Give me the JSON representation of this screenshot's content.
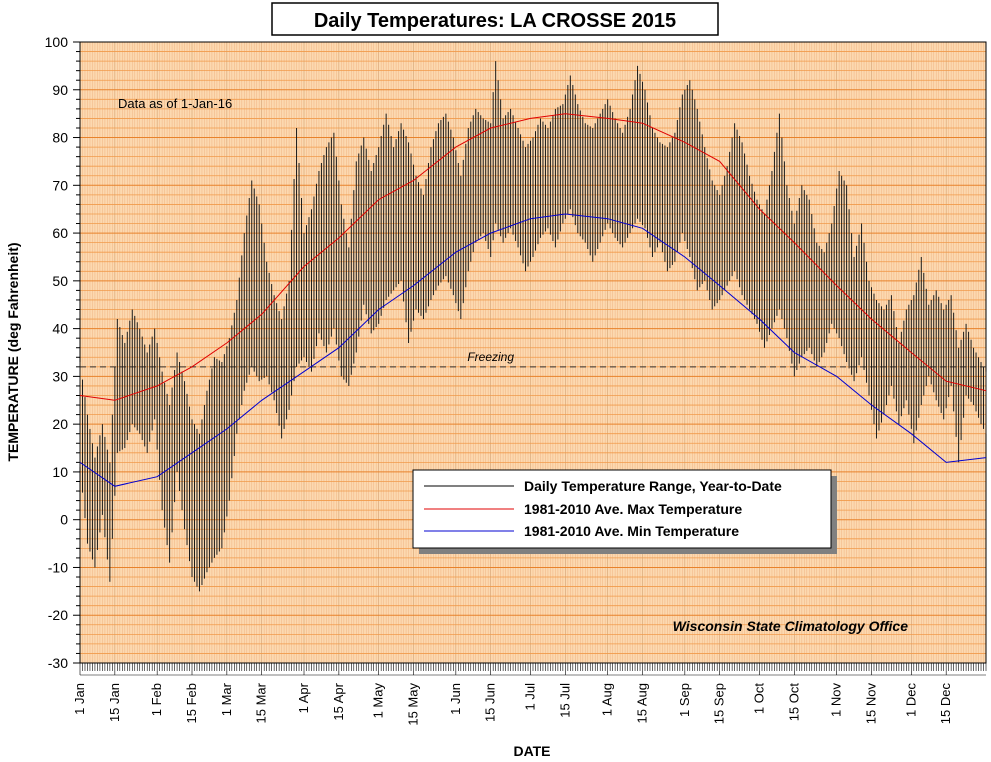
{
  "chart_data": {
    "type": "line",
    "title": "Daily Temperatures: LA CROSSE 2015",
    "ylabel": "TEMPERATURE (deg Fahrenheit)",
    "xlabel": "DATE",
    "ylim": [
      -30,
      100
    ],
    "yticks": [
      -30,
      -20,
      -10,
      0,
      10,
      20,
      30,
      40,
      50,
      60,
      70,
      80,
      90,
      100
    ],
    "xlim_day_of_year": [
      1,
      365
    ],
    "xticks": [
      {
        "label": "1 Jan",
        "day": 1
      },
      {
        "label": "15 Jan",
        "day": 15
      },
      {
        "label": "1 Feb",
        "day": 32
      },
      {
        "label": "15 Feb",
        "day": 46
      },
      {
        "label": "1 Mar",
        "day": 60
      },
      {
        "label": "15 Mar",
        "day": 74
      },
      {
        "label": "1 Apr",
        "day": 91
      },
      {
        "label": "15 Apr",
        "day": 105
      },
      {
        "label": "1 May",
        "day": 121
      },
      {
        "label": "15 May",
        "day": 135
      },
      {
        "label": "1 Jun",
        "day": 152
      },
      {
        "label": "15 Jun",
        "day": 166
      },
      {
        "label": "1 Jul",
        "day": 182
      },
      {
        "label": "15 Jul",
        "day": 196
      },
      {
        "label": "1 Aug",
        "day": 213
      },
      {
        "label": "15 Aug",
        "day": 227
      },
      {
        "label": "1 Sep",
        "day": 244
      },
      {
        "label": "15 Sep",
        "day": 258
      },
      {
        "label": "1 Oct",
        "day": 274
      },
      {
        "label": "15 Oct",
        "day": 288
      },
      {
        "label": "1 Nov",
        "day": 305
      },
      {
        "label": "15 Nov",
        "day": 319
      },
      {
        "label": "1 Dec",
        "day": 335
      },
      {
        "label": "15 Dec",
        "day": 349
      }
    ],
    "annotation": "Data as of 1-Jan-16",
    "credit": "Wisconsin State Climatology Office",
    "freezing": {
      "label": "Freezing",
      "value": 32
    },
    "legend_position": "center-right",
    "legend": [
      {
        "label": "Daily Temperature Range, Year-to-Date",
        "color": "#000000"
      },
      {
        "label": "1981-2010 Ave. Max Temperature",
        "color": "#e00000"
      },
      {
        "label": "1981-2010 Ave. Min Temperature",
        "color": "#0000d0"
      }
    ],
    "avg_max_curve": {
      "day": [
        1,
        15,
        32,
        46,
        60,
        74,
        91,
        105,
        121,
        135,
        152,
        166,
        182,
        196,
        213,
        227,
        244,
        258,
        274,
        288,
        305,
        319,
        335,
        349,
        365
      ],
      "value": [
        26,
        25,
        28,
        32,
        37,
        43,
        53,
        59,
        67,
        71,
        78,
        82,
        84,
        85,
        84,
        83,
        79,
        75,
        65,
        58,
        49,
        42,
        35,
        29,
        27
      ]
    },
    "avg_min_curve": {
      "day": [
        1,
        15,
        32,
        46,
        60,
        74,
        91,
        105,
        121,
        135,
        152,
        166,
        182,
        196,
        213,
        227,
        244,
        258,
        274,
        288,
        305,
        319,
        335,
        349,
        365
      ],
      "value": [
        12,
        7,
        9,
        14,
        19,
        25,
        31,
        36,
        44,
        49,
        56,
        60,
        63,
        64,
        63,
        61,
        55,
        49,
        42,
        35,
        30,
        24,
        18,
        12,
        13
      ]
    },
    "daily_range": [
      {
        "day": 1,
        "min": 11,
        "max": 33
      },
      {
        "day": 4,
        "min": -5,
        "max": 22
      },
      {
        "day": 7,
        "min": -10,
        "max": 13
      },
      {
        "day": 10,
        "min": 1,
        "max": 20
      },
      {
        "day": 13,
        "min": -13,
        "max": 12
      },
      {
        "day": 16,
        "min": 14,
        "max": 42
      },
      {
        "day": 19,
        "min": 15,
        "max": 37
      },
      {
        "day": 22,
        "min": 20,
        "max": 44
      },
      {
        "day": 25,
        "min": 18,
        "max": 40
      },
      {
        "day": 28,
        "min": 14,
        "max": 35
      },
      {
        "day": 31,
        "min": 21,
        "max": 40
      },
      {
        "day": 34,
        "min": 2,
        "max": 31
      },
      {
        "day": 37,
        "min": -9,
        "max": 24
      },
      {
        "day": 40,
        "min": 10,
        "max": 35
      },
      {
        "day": 43,
        "min": -2,
        "max": 29
      },
      {
        "day": 46,
        "min": -12,
        "max": 21
      },
      {
        "day": 49,
        "min": -15,
        "max": 18
      },
      {
        "day": 52,
        "min": -11,
        "max": 27
      },
      {
        "day": 55,
        "min": -8,
        "max": 34
      },
      {
        "day": 58,
        "min": -6,
        "max": 33
      },
      {
        "day": 61,
        "min": 4,
        "max": 38
      },
      {
        "day": 64,
        "min": 18,
        "max": 46
      },
      {
        "day": 67,
        "min": 27,
        "max": 60
      },
      {
        "day": 70,
        "min": 32,
        "max": 71
      },
      {
        "day": 73,
        "min": 29,
        "max": 66
      },
      {
        "day": 76,
        "min": 30,
        "max": 54
      },
      {
        "day": 79,
        "min": 25,
        "max": 47
      },
      {
        "day": 82,
        "min": 17,
        "max": 42
      },
      {
        "day": 85,
        "min": 23,
        "max": 50
      },
      {
        "day": 88,
        "min": 32,
        "max": 82
      },
      {
        "day": 91,
        "min": 34,
        "max": 60
      },
      {
        "day": 94,
        "min": 31,
        "max": 65
      },
      {
        "day": 97,
        "min": 39,
        "max": 73
      },
      {
        "day": 100,
        "min": 35,
        "max": 78
      },
      {
        "day": 103,
        "min": 40,
        "max": 81
      },
      {
        "day": 106,
        "min": 30,
        "max": 66
      },
      {
        "day": 109,
        "min": 28,
        "max": 57
      },
      {
        "day": 112,
        "min": 35,
        "max": 75
      },
      {
        "day": 115,
        "min": 45,
        "max": 80
      },
      {
        "day": 118,
        "min": 39,
        "max": 73
      },
      {
        "day": 121,
        "min": 41,
        "max": 78
      },
      {
        "day": 124,
        "min": 46,
        "max": 85
      },
      {
        "day": 127,
        "min": 48,
        "max": 78
      },
      {
        "day": 130,
        "min": 50,
        "max": 83
      },
      {
        "day": 133,
        "min": 37,
        "max": 79
      },
      {
        "day": 136,
        "min": 44,
        "max": 72
      },
      {
        "day": 139,
        "min": 42,
        "max": 68
      },
      {
        "day": 142,
        "min": 46,
        "max": 78
      },
      {
        "day": 145,
        "min": 49,
        "max": 83
      },
      {
        "day": 148,
        "min": 51,
        "max": 85
      },
      {
        "day": 151,
        "min": 47,
        "max": 80
      },
      {
        "day": 154,
        "min": 42,
        "max": 72
      },
      {
        "day": 157,
        "min": 52,
        "max": 82
      },
      {
        "day": 160,
        "min": 58,
        "max": 86
      },
      {
        "day": 163,
        "min": 60,
        "max": 84
      },
      {
        "day": 166,
        "min": 55,
        "max": 83
      },
      {
        "day": 168,
        "min": 62,
        "max": 96
      },
      {
        "day": 171,
        "min": 58,
        "max": 84
      },
      {
        "day": 174,
        "min": 61,
        "max": 86
      },
      {
        "day": 177,
        "min": 57,
        "max": 82
      },
      {
        "day": 180,
        "min": 52,
        "max": 78
      },
      {
        "day": 183,
        "min": 55,
        "max": 80
      },
      {
        "day": 186,
        "min": 59,
        "max": 84
      },
      {
        "day": 189,
        "min": 61,
        "max": 82
      },
      {
        "day": 192,
        "min": 57,
        "max": 86
      },
      {
        "day": 195,
        "min": 62,
        "max": 87
      },
      {
        "day": 198,
        "min": 65,
        "max": 93
      },
      {
        "day": 201,
        "min": 60,
        "max": 87
      },
      {
        "day": 204,
        "min": 58,
        "max": 83
      },
      {
        "day": 207,
        "min": 54,
        "max": 82
      },
      {
        "day": 210,
        "min": 58,
        "max": 85
      },
      {
        "day": 213,
        "min": 62,
        "max": 88
      },
      {
        "day": 216,
        "min": 59,
        "max": 84
      },
      {
        "day": 219,
        "min": 57,
        "max": 81
      },
      {
        "day": 222,
        "min": 60,
        "max": 86
      },
      {
        "day": 225,
        "min": 63,
        "max": 95
      },
      {
        "day": 228,
        "min": 61,
        "max": 90
      },
      {
        "day": 231,
        "min": 55,
        "max": 82
      },
      {
        "day": 234,
        "min": 58,
        "max": 79
      },
      {
        "day": 237,
        "min": 52,
        "max": 78
      },
      {
        "day": 240,
        "min": 54,
        "max": 81
      },
      {
        "day": 243,
        "min": 60,
        "max": 89
      },
      {
        "day": 246,
        "min": 55,
        "max": 92
      },
      {
        "day": 249,
        "min": 48,
        "max": 86
      },
      {
        "day": 252,
        "min": 50,
        "max": 78
      },
      {
        "day": 255,
        "min": 44,
        "max": 71
      },
      {
        "day": 258,
        "min": 46,
        "max": 68
      },
      {
        "day": 261,
        "min": 49,
        "max": 74
      },
      {
        "day": 264,
        "min": 52,
        "max": 83
      },
      {
        "day": 267,
        "min": 47,
        "max": 79
      },
      {
        "day": 270,
        "min": 44,
        "max": 72
      },
      {
        "day": 273,
        "min": 41,
        "max": 67
      },
      {
        "day": 276,
        "min": 36,
        "max": 64
      },
      {
        "day": 279,
        "min": 40,
        "max": 73
      },
      {
        "day": 282,
        "min": 44,
        "max": 85
      },
      {
        "day": 285,
        "min": 38,
        "max": 70
      },
      {
        "day": 288,
        "min": 30,
        "max": 62
      },
      {
        "day": 291,
        "min": 34,
        "max": 70
      },
      {
        "day": 294,
        "min": 36,
        "max": 67
      },
      {
        "day": 297,
        "min": 32,
        "max": 58
      },
      {
        "day": 300,
        "min": 35,
        "max": 56
      },
      {
        "day": 303,
        "min": 41,
        "max": 62
      },
      {
        "day": 306,
        "min": 38,
        "max": 73
      },
      {
        "day": 309,
        "min": 33,
        "max": 70
      },
      {
        "day": 312,
        "min": 29,
        "max": 55
      },
      {
        "day": 315,
        "min": 34,
        "max": 62
      },
      {
        "day": 318,
        "min": 26,
        "max": 50
      },
      {
        "day": 321,
        "min": 17,
        "max": 46
      },
      {
        "day": 324,
        "min": 22,
        "max": 44
      },
      {
        "day": 327,
        "min": 28,
        "max": 47
      },
      {
        "day": 330,
        "min": 20,
        "max": 37
      },
      {
        "day": 333,
        "min": 25,
        "max": 44
      },
      {
        "day": 336,
        "min": 16,
        "max": 47
      },
      {
        "day": 339,
        "min": 24,
        "max": 55
      },
      {
        "day": 342,
        "min": 30,
        "max": 45
      },
      {
        "day": 345,
        "min": 25,
        "max": 48
      },
      {
        "day": 348,
        "min": 21,
        "max": 44
      },
      {
        "day": 351,
        "min": 28,
        "max": 47
      },
      {
        "day": 354,
        "min": 12,
        "max": 36
      },
      {
        "day": 357,
        "min": 26,
        "max": 41
      },
      {
        "day": 360,
        "min": 24,
        "max": 36
      },
      {
        "day": 363,
        "min": 20,
        "max": 33
      },
      {
        "day": 365,
        "min": 18,
        "max": 31
      }
    ]
  }
}
